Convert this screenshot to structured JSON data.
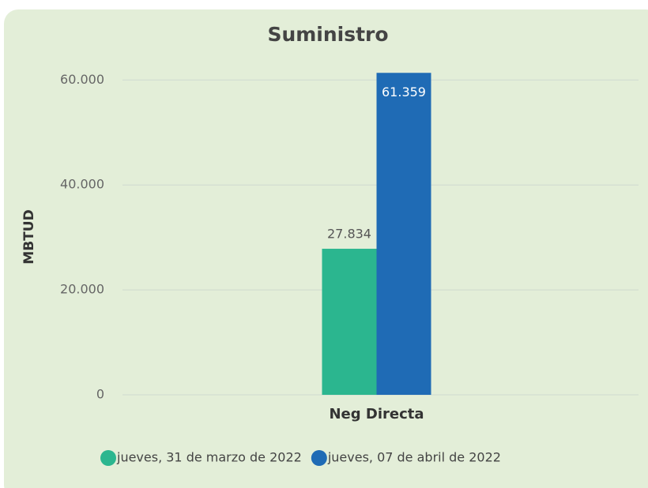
{
  "chart_data": {
    "type": "bar",
    "title": "Suministro",
    "y_label": "MBTUD",
    "categories": [
      "Neg Directa"
    ],
    "series": [
      {
        "name": "jueves, 31 de marzo de 2022",
        "color": "#2bb68f",
        "values": [
          27834
        ],
        "value_labels": [
          "27.834"
        ]
      },
      {
        "name": "jueves, 07 de abril de 2022",
        "color": "#1f6bb5",
        "values": [
          61359
        ],
        "value_labels": [
          "61.359"
        ]
      }
    ],
    "ylim": [
      0,
      62000
    ],
    "yticks": [
      0,
      {
        "value": 20000,
        "label": "20.000"
      },
      {
        "value": 40000,
        "label": "40.000"
      },
      {
        "value": 60000,
        "label": "60.000"
      }
    ],
    "grid": true,
    "legend": "bottom"
  }
}
